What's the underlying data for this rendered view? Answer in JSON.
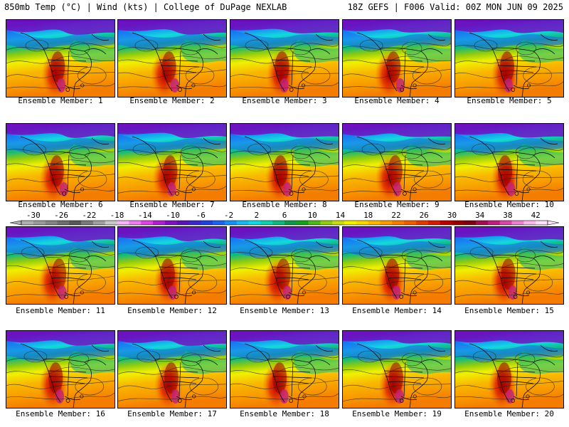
{
  "header": {
    "left": "850mb Temp (°C) | Wind (kts) | College of DuPage NEXLAB",
    "right": "18Z GEFS | F006 Valid: 00Z MON JUN 09 2025"
  },
  "panels": [
    {
      "label": "Ensemble Member: 1"
    },
    {
      "label": "Ensemble Member: 2"
    },
    {
      "label": "Ensemble Member: 3"
    },
    {
      "label": "Ensemble Member: 4"
    },
    {
      "label": "Ensemble Member: 5"
    },
    {
      "label": "Ensemble Member: 6"
    },
    {
      "label": "Ensemble Member: 7"
    },
    {
      "label": "Ensemble Member: 8"
    },
    {
      "label": "Ensemble Member: 9"
    },
    {
      "label": "Ensemble Member: 10"
    },
    {
      "label": "Ensemble Member: 11"
    },
    {
      "label": "Ensemble Member: 12"
    },
    {
      "label": "Ensemble Member: 13"
    },
    {
      "label": "Ensemble Member: 14"
    },
    {
      "label": "Ensemble Member: 15"
    },
    {
      "label": "Ensemble Member: 16"
    },
    {
      "label": "Ensemble Member: 17"
    },
    {
      "label": "Ensemble Member: 18"
    },
    {
      "label": "Ensemble Member: 19"
    },
    {
      "label": "Ensemble Member: 20"
    }
  ],
  "colorbar": {
    "ticks": [
      "-30",
      "-26",
      "-22",
      "-18",
      "-14",
      "-10",
      "-6",
      "-2",
      "2",
      "6",
      "10",
      "14",
      "18",
      "22",
      "26",
      "30",
      "34",
      "38",
      "42"
    ],
    "colors": [
      "#b0b0b0",
      "#9a9a9a",
      "#848484",
      "#6e6e6e",
      "#585858",
      "#7a7a7a",
      "#a0a0a0",
      "#c8c8c8",
      "#f7b4f7",
      "#ee7ef0",
      "#dd44e0",
      "#b020d0",
      "#8010c0",
      "#5a14b4",
      "#3c28c8",
      "#2040e0",
      "#1c64f0",
      "#1890f4",
      "#18b8f0",
      "#14d8e0",
      "#10d0b0",
      "#10b880",
      "#109850",
      "#18a020",
      "#50b818",
      "#90cc10",
      "#c8dc10",
      "#f0f000",
      "#f8d800",
      "#f8b800",
      "#f89c00",
      "#f47c00",
      "#f05c00",
      "#e43c00",
      "#d41c00",
      "#b80000",
      "#980000",
      "#7c0010",
      "#a01050",
      "#c02080",
      "#d848a8",
      "#ee80d0",
      "#f8b8ec",
      "#ffe0fa"
    ]
  }
}
